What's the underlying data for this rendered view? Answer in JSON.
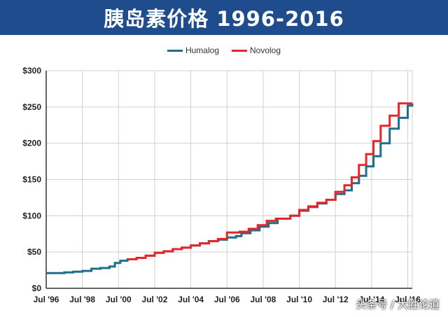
{
  "title": "胰岛素价格  1996-2016",
  "watermark": "头条号 / 大胜论道",
  "colors": {
    "title_bg": "#1e4c8c",
    "humalog": "#1f6e8c",
    "novolog": "#e8262a",
    "grid": "#d0d0d0"
  },
  "chart_data": {
    "type": "line",
    "title": "胰岛素价格  1996-2016",
    "xlabel": "",
    "ylabel": "",
    "xlim": [
      1996.5,
      2016.75
    ],
    "ylim": [
      0,
      300
    ],
    "x_ticks": [
      1996.5,
      1998.5,
      2000.5,
      2002.5,
      2004.5,
      2006.5,
      2008.5,
      2010.5,
      2012.5,
      2014.5,
      2016.5
    ],
    "x_tick_labels": [
      "Jul '96",
      "Jul '98",
      "Jul '00",
      "Jul '02",
      "Jul '04",
      "Jul '06",
      "Jul '08",
      "Jul '10",
      "Jul '12",
      "Jul '14",
      "Jul '16"
    ],
    "y_ticks": [
      0,
      50,
      100,
      150,
      200,
      250,
      300
    ],
    "y_tick_labels": [
      "$0",
      "$50",
      "$100",
      "$150",
      "$200",
      "$250",
      "$300"
    ],
    "grid": true,
    "legend_position": "top-center",
    "step": true,
    "series": [
      {
        "name": "Humalog",
        "color": "#1f6e8c",
        "x": [
          1996.5,
          1997.5,
          1998.0,
          1998.5,
          1999.0,
          1999.5,
          2000.0,
          2000.3,
          2000.6,
          2001.0,
          2001.5,
          2002.0,
          2002.5,
          2003.0,
          2003.5,
          2004.0,
          2004.5,
          2005.0,
          2005.5,
          2006.0,
          2006.5,
          2007.0,
          2007.3,
          2007.8,
          2008.3,
          2008.8,
          2009.3,
          2010.0,
          2010.5,
          2011.0,
          2011.5,
          2012.0,
          2012.5,
          2013.0,
          2013.4,
          2013.8,
          2014.2,
          2014.6,
          2015.0,
          2015.5,
          2016.0,
          2016.5,
          2016.75
        ],
        "y": [
          21,
          22,
          23,
          24,
          27,
          28,
          30,
          35,
          38,
          40,
          42,
          45,
          49,
          51,
          54,
          56,
          59,
          62,
          65,
          67,
          70,
          72,
          76,
          80,
          85,
          90,
          96,
          100,
          107,
          112,
          117,
          122,
          130,
          135,
          145,
          155,
          168,
          182,
          200,
          220,
          235,
          252,
          255
        ]
      },
      {
        "name": "Novolog",
        "color": "#e8262a",
        "x": [
          2001.0,
          2001.5,
          2002.0,
          2002.5,
          2003.0,
          2003.5,
          2004.0,
          2004.5,
          2005.0,
          2005.5,
          2006.0,
          2006.5,
          2007.2,
          2007.7,
          2008.2,
          2008.7,
          2009.2,
          2010.0,
          2010.5,
          2011.0,
          2011.5,
          2012.0,
          2012.5,
          2013.0,
          2013.4,
          2013.8,
          2014.2,
          2014.6,
          2015.0,
          2015.5,
          2016.0,
          2016.5,
          2016.75
        ],
        "y": [
          40,
          42,
          45,
          49,
          51,
          54,
          56,
          59,
          62,
          65,
          68,
          77,
          78,
          82,
          87,
          93,
          96,
          100,
          108,
          113,
          118,
          122,
          133,
          142,
          153,
          170,
          185,
          203,
          224,
          238,
          255,
          255,
          255
        ]
      }
    ]
  }
}
